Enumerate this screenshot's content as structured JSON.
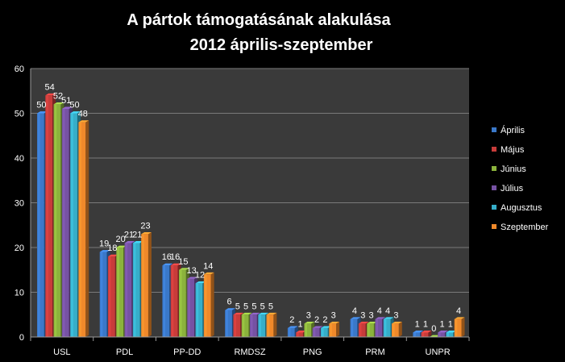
{
  "chart_data": {
    "type": "bar",
    "title": "A pártok támogatásának alakulása",
    "subtitle": "2012 április-szeptember",
    "categories": [
      "USL",
      "PDL",
      "PP-DD",
      "RMDSZ",
      "PNG",
      "PRM",
      "UNPR"
    ],
    "series": [
      {
        "name": "Április",
        "color": "#3a78c9",
        "values": [
          50,
          19,
          16,
          6,
          2,
          4,
          1
        ]
      },
      {
        "name": "Május",
        "color": "#c83c3a",
        "values": [
          54,
          18,
          16,
          5,
          1,
          3,
          1
        ]
      },
      {
        "name": "Június",
        "color": "#8bb33c",
        "values": [
          52,
          20,
          15,
          5,
          3,
          3,
          0
        ]
      },
      {
        "name": "Július",
        "color": "#7652a3",
        "values": [
          51,
          21,
          13,
          5,
          2,
          4,
          1
        ]
      },
      {
        "name": "Augusztus",
        "color": "#36aec9",
        "values": [
          50,
          21,
          12,
          5,
          2,
          4,
          1
        ]
      },
      {
        "name": "Szeptember",
        "color": "#f0892a",
        "values": [
          48,
          23,
          14,
          5,
          3,
          3,
          4
        ]
      }
    ],
    "ylim": [
      0,
      60
    ],
    "yticks": [
      "0",
      "10",
      "20",
      "30",
      "40",
      "50",
      "60"
    ],
    "grid": true,
    "legend": "right",
    "plot_background": "#3a3a3a",
    "grid_color": "#7a7a7a"
  }
}
